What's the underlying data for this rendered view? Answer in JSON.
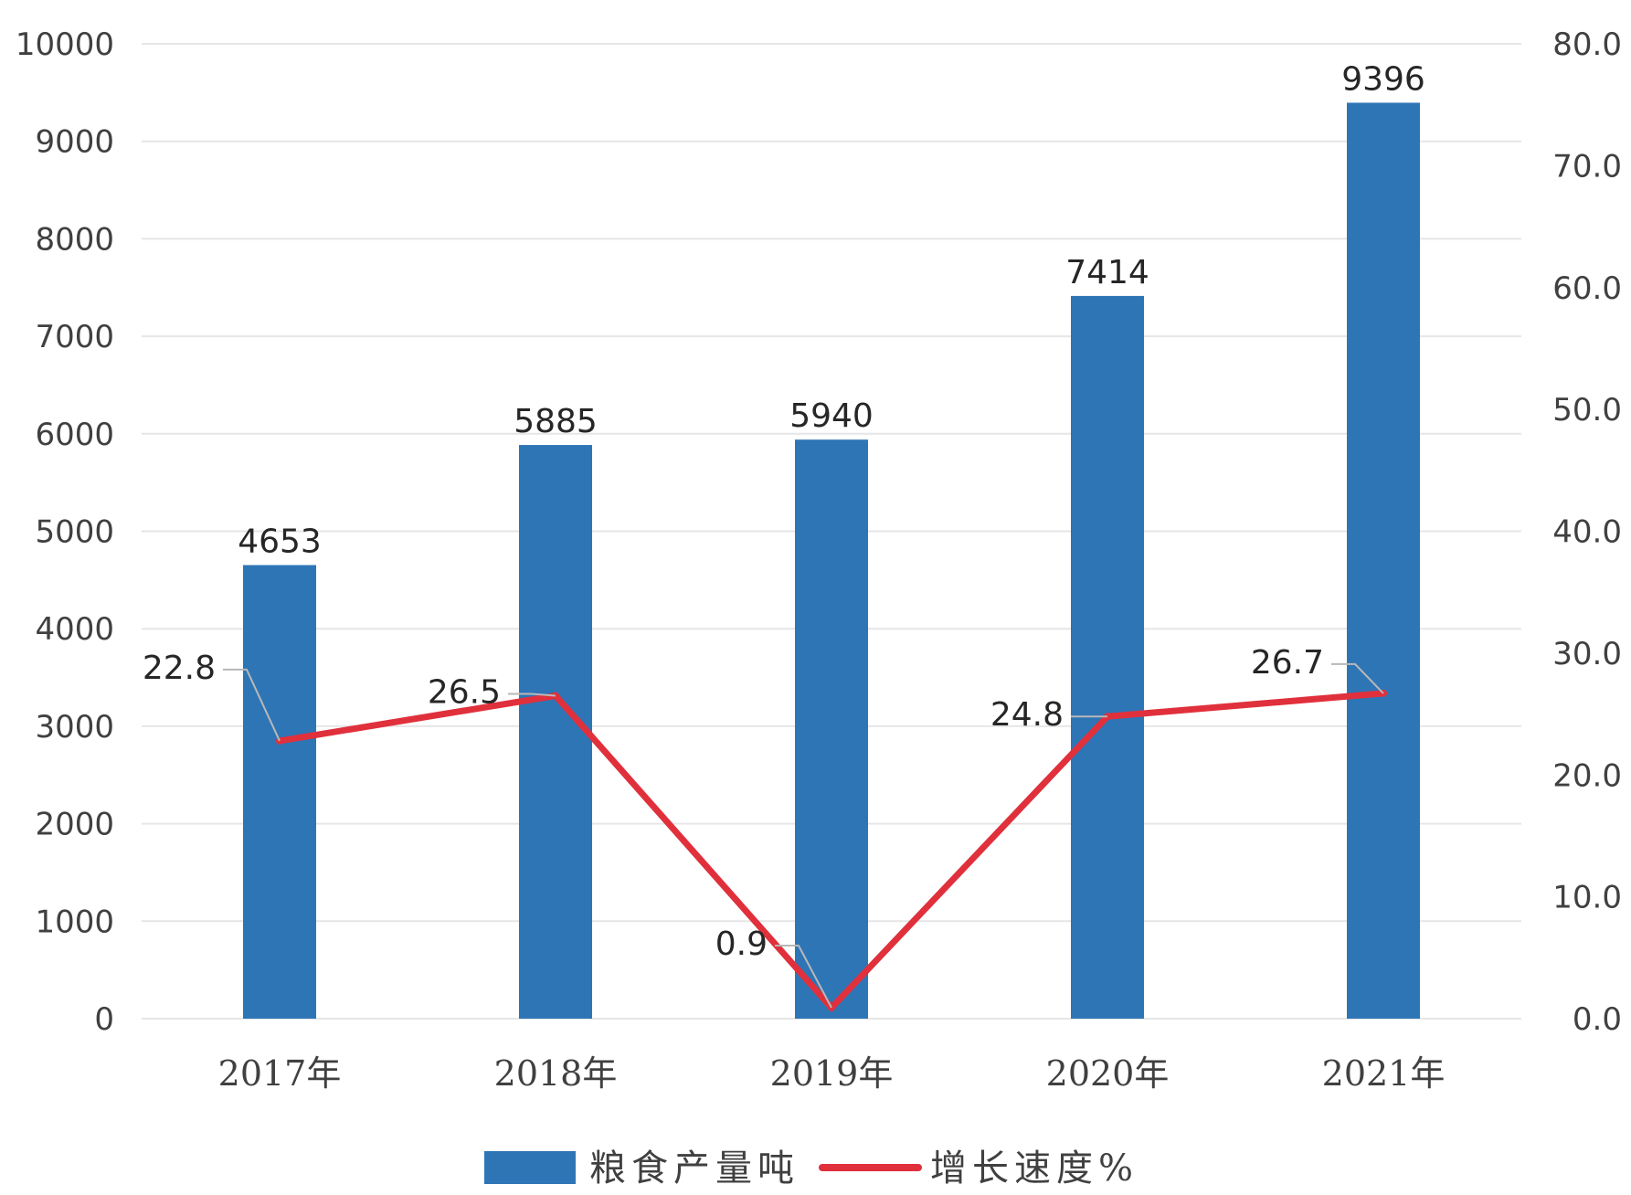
{
  "chart_data": {
    "type": "bar",
    "categories": [
      "2017年",
      "2018年",
      "2019年",
      "2020年",
      "2021年"
    ],
    "series": [
      {
        "name": "粮食产量吨",
        "type": "bar",
        "axis": "left",
        "values": [
          4653,
          5885,
          5940,
          7414,
          9396
        ],
        "color": "#2e75b6"
      },
      {
        "name": "增长速度%",
        "type": "line",
        "axis": "right",
        "values": [
          22.8,
          26.5,
          0.9,
          24.8,
          26.7
        ],
        "color": "#e0303c"
      }
    ],
    "bar_labels": [
      "4653",
      "5885",
      "5940",
      "7414",
      "9396"
    ],
    "line_labels": [
      "22.8",
      "26.5",
      "0.9",
      "24.8",
      "26.7"
    ],
    "y_left": {
      "ylim": [
        0,
        10000
      ],
      "ticks": [
        "0",
        "1000",
        "2000",
        "3000",
        "4000",
        "5000",
        "6000",
        "7000",
        "8000",
        "9000",
        "10000"
      ]
    },
    "y_right": {
      "ylim": [
        0,
        80
      ],
      "ticks": [
        "0.0",
        "10.0",
        "20.0",
        "30.0",
        "40.0",
        "50.0",
        "60.0",
        "70.0",
        "80.0"
      ]
    },
    "legend": {
      "position": "bottom",
      "items": [
        "粮食产量吨",
        "增长速度%"
      ]
    },
    "grid": true,
    "title": "",
    "xlabel": "",
    "ylabel": ""
  }
}
